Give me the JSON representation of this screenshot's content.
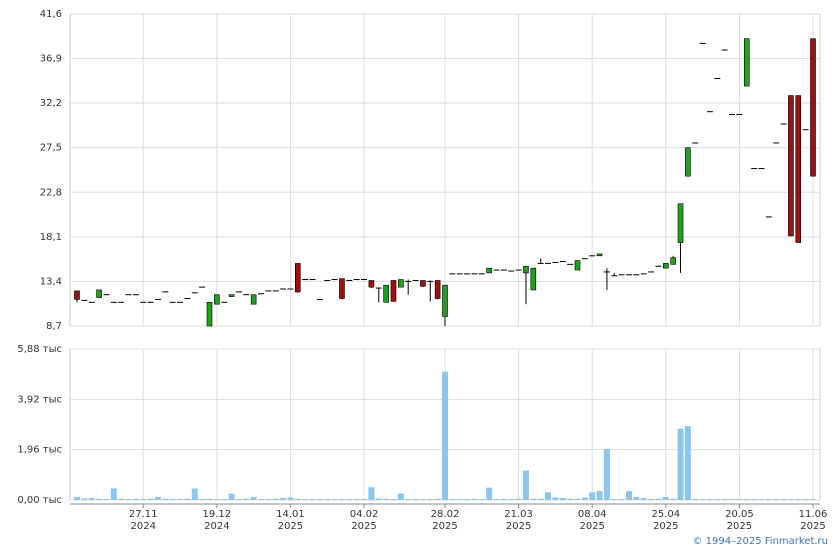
{
  "chart_data": {
    "type": "candlestick",
    "source": "© 1994–2025 Finmarket.ru",
    "categories": [
      null,
      null,
      null,
      null,
      null,
      null,
      null,
      null,
      null,
      "27.11",
      null,
      null,
      null,
      null,
      null,
      null,
      null,
      null,
      null,
      "19.12",
      null,
      null,
      null,
      null,
      null,
      null,
      null,
      null,
      null,
      "14.01",
      null,
      null,
      null,
      null,
      null,
      null,
      null,
      null,
      null,
      "04.02",
      null,
      null,
      null,
      null,
      null,
      null,
      null,
      null,
      null,
      null,
      "28.02",
      null,
      null,
      null,
      null,
      null,
      null,
      null,
      null,
      null,
      "21.03",
      null,
      null,
      null,
      null,
      null,
      null,
      null,
      null,
      null,
      "08.04",
      null,
      null,
      null,
      null,
      null,
      null,
      null,
      null,
      null,
      "25.04",
      null,
      null,
      null,
      null,
      null,
      null,
      null,
      null,
      null,
      "20.05",
      null,
      null,
      null,
      null,
      null,
      null,
      null,
      null,
      null,
      "11.06"
    ],
    "category_years": [
      null,
      null,
      null,
      null,
      null,
      null,
      null,
      null,
      null,
      "2024",
      null,
      null,
      null,
      null,
      null,
      null,
      null,
      null,
      null,
      "2024",
      null,
      null,
      null,
      null,
      null,
      null,
      null,
      null,
      null,
      "2025",
      null,
      null,
      null,
      null,
      null,
      null,
      null,
      null,
      null,
      "2025",
      null,
      null,
      null,
      null,
      null,
      null,
      null,
      null,
      null,
      null,
      "2025",
      null,
      null,
      null,
      null,
      null,
      null,
      null,
      null,
      null,
      "2025",
      null,
      null,
      null,
      null,
      null,
      null,
      null,
      null,
      null,
      "2025",
      null,
      null,
      null,
      null,
      null,
      null,
      null,
      null,
      null,
      "2025",
      null,
      null,
      null,
      null,
      null,
      null,
      null,
      null,
      null,
      "2025",
      null,
      null,
      null,
      null,
      null,
      null,
      null,
      null,
      null,
      "2025"
    ],
    "ohlc": [
      [
        12.4,
        12.4,
        11.2,
        11.5
      ],
      [
        11.4,
        11.4,
        11.4,
        11.4
      ],
      [
        11.2,
        11.2,
        11.2,
        11.2
      ],
      [
        11.7,
        12.5,
        11.7,
        12.5
      ],
      [
        12.0,
        12.0,
        12.0,
        12.0
      ],
      [
        11.2,
        11.2,
        11.2,
        11.2
      ],
      [
        11.2,
        11.2,
        11.2,
        11.2
      ],
      [
        12.0,
        12.0,
        12.0,
        12.0
      ],
      [
        12.0,
        12.0,
        12.0,
        12.0
      ],
      [
        11.2,
        11.2,
        11.2,
        11.2
      ],
      [
        11.2,
        11.2,
        11.2,
        11.2
      ],
      [
        11.5,
        11.5,
        11.5,
        11.5
      ],
      [
        12.3,
        12.3,
        12.3,
        12.3
      ],
      [
        11.2,
        11.2,
        11.2,
        11.2
      ],
      [
        11.2,
        11.2,
        11.2,
        11.2
      ],
      [
        11.6,
        11.6,
        11.6,
        11.6
      ],
      [
        12.2,
        12.2,
        12.2,
        12.2
      ],
      [
        12.8,
        12.8,
        12.8,
        12.8
      ],
      [
        8.7,
        11.2,
        8.7,
        11.2
      ],
      [
        11.0,
        12.0,
        11.0,
        12.0
      ],
      [
        11.2,
        11.2,
        11.2,
        11.2
      ],
      [
        11.8,
        12.0,
        11.8,
        12.0
      ],
      [
        12.3,
        12.3,
        12.3,
        12.3
      ],
      [
        12.0,
        12.0,
        12.0,
        12.0
      ],
      [
        11.0,
        12.0,
        11.0,
        12.0
      ],
      [
        12.1,
        12.1,
        12.1,
        12.1
      ],
      [
        12.4,
        12.4,
        12.4,
        12.4
      ],
      [
        12.4,
        12.4,
        12.4,
        12.4
      ],
      [
        12.6,
        12.6,
        12.6,
        12.6
      ],
      [
        12.6,
        12.6,
        12.6,
        12.6
      ],
      [
        15.3,
        15.3,
        12.2,
        12.3
      ],
      [
        13.6,
        13.6,
        13.6,
        13.6
      ],
      [
        13.6,
        13.6,
        13.6,
        13.6
      ],
      [
        11.5,
        11.5,
        11.5,
        11.5
      ],
      [
        13.5,
        13.5,
        13.5,
        13.5
      ],
      [
        13.6,
        13.6,
        13.6,
        13.6
      ],
      [
        13.7,
        13.7,
        11.5,
        11.6
      ],
      [
        13.5,
        13.5,
        13.5,
        13.5
      ],
      [
        13.6,
        13.6,
        13.6,
        13.6
      ],
      [
        13.6,
        13.6,
        13.6,
        13.6
      ],
      [
        13.5,
        13.5,
        12.7,
        12.8
      ],
      [
        12.7,
        12.7,
        11.2,
        12.7
      ],
      [
        11.2,
        13.0,
        11.2,
        13.0
      ],
      [
        13.5,
        13.5,
        11.3,
        11.3
      ],
      [
        12.8,
        13.6,
        12.8,
        13.6
      ],
      [
        13.4,
        13.6,
        12.0,
        13.4
      ],
      [
        13.5,
        13.5,
        13.5,
        13.5
      ],
      [
        13.5,
        13.5,
        12.8,
        12.9
      ],
      [
        13.4,
        13.5,
        11.3,
        13.4
      ],
      [
        13.5,
        13.5,
        11.5,
        11.6
      ],
      [
        9.7,
        13.0,
        8.7,
        13.0
      ],
      [
        14.2,
        14.2,
        14.2,
        14.2
      ],
      [
        14.2,
        14.2,
        14.2,
        14.2
      ],
      [
        14.2,
        14.2,
        14.2,
        14.2
      ],
      [
        14.2,
        14.2,
        14.2,
        14.2
      ],
      [
        14.2,
        14.2,
        14.2,
        14.2
      ],
      [
        14.3,
        14.8,
        14.3,
        14.8
      ],
      [
        14.6,
        14.6,
        14.6,
        14.6
      ],
      [
        14.6,
        14.6,
        14.6,
        14.6
      ],
      [
        14.5,
        14.5,
        14.5,
        14.5
      ],
      [
        14.6,
        14.6,
        14.6,
        14.6
      ],
      [
        14.3,
        15.0,
        11.0,
        15.0
      ],
      [
        12.5,
        14.8,
        12.5,
        14.8
      ],
      [
        15.3,
        15.8,
        15.3,
        15.3
      ],
      [
        15.3,
        15.3,
        15.3,
        15.3
      ],
      [
        15.4,
        15.4,
        15.4,
        15.4
      ],
      [
        15.5,
        15.5,
        15.5,
        15.5
      ],
      [
        15.2,
        15.2,
        15.2,
        15.2
      ],
      [
        14.6,
        15.6,
        14.6,
        15.6
      ],
      [
        15.8,
        15.8,
        15.8,
        15.8
      ],
      [
        16.1,
        16.1,
        16.1,
        16.1
      ],
      [
        16.1,
        16.3,
        16.1,
        16.3
      ],
      [
        14.4,
        14.8,
        12.5,
        14.4
      ],
      [
        14.0,
        14.3,
        14.0,
        14.0
      ],
      [
        14.1,
        14.1,
        14.1,
        14.1
      ],
      [
        14.1,
        14.1,
        14.1,
        14.1
      ],
      [
        14.1,
        14.1,
        14.1,
        14.1
      ],
      [
        14.2,
        14.2,
        14.2,
        14.2
      ],
      [
        14.4,
        14.4,
        14.4,
        14.4
      ],
      [
        15.0,
        15.0,
        15.0,
        15.0
      ],
      [
        14.8,
        15.3,
        14.8,
        15.3
      ],
      [
        15.2,
        16.1,
        15.2,
        15.9
      ],
      [
        17.5,
        21.6,
        14.3,
        21.6
      ],
      [
        24.5,
        27.5,
        24.5,
        27.5
      ],
      [
        28.0,
        28.0,
        28.0,
        28.0
      ],
      [
        38.5,
        38.5,
        38.5,
        38.5
      ],
      [
        31.3,
        31.3,
        31.3,
        31.3
      ],
      [
        34.8,
        34.8,
        34.8,
        34.8
      ],
      [
        37.8,
        37.8,
        37.8,
        37.8
      ],
      [
        31.0,
        31.0,
        31.0,
        31.0
      ],
      [
        31.0,
        31.0,
        31.0,
        31.0
      ],
      [
        34.0,
        39.0,
        34.0,
        39.0
      ],
      [
        25.3,
        25.3,
        25.3,
        25.3
      ],
      [
        25.3,
        25.3,
        25.3,
        25.3
      ],
      [
        20.2,
        20.2,
        20.2,
        20.2
      ],
      [
        28.0,
        28.0,
        28.0,
        28.0
      ],
      [
        30.0,
        30.0,
        30.0,
        30.0
      ],
      [
        33.0,
        33.0,
        18.2,
        18.2
      ],
      [
        33.0,
        33.0,
        17.5,
        17.5
      ],
      [
        29.4,
        29.4,
        29.4,
        29.4
      ],
      [
        39.0,
        39.0,
        24.5,
        24.5
      ]
    ],
    "volume": [
      0.12,
      0.06,
      0.08,
      0.05,
      0.04,
      0.45,
      0.05,
      0.04,
      0.05,
      0.04,
      0.05,
      0.12,
      0.05,
      0.04,
      0.04,
      0.05,
      0.45,
      0.04,
      0.05,
      0.04,
      0.04,
      0.25,
      0.04,
      0.05,
      0.12,
      0.04,
      0.04,
      0.05,
      0.08,
      0.1,
      0.05,
      0.04,
      0.04,
      0.04,
      0.04,
      0.04,
      0.04,
      0.04,
      0.04,
      0.04,
      0.5,
      0.06,
      0.05,
      0.04,
      0.25,
      0.04,
      0.04,
      0.04,
      0.04,
      0.05,
      5.0,
      0.04,
      0.04,
      0.04,
      0.05,
      0.04,
      0.48,
      0.04,
      0.05,
      0.04,
      0.05,
      1.15,
      0.05,
      0.05,
      0.3,
      0.1,
      0.08,
      0.05,
      0.05,
      0.1,
      0.3,
      0.35,
      1.98,
      0.04,
      0.04,
      0.35,
      0.12,
      0.08,
      0.04,
      0.05,
      0.12,
      0.05,
      2.78,
      2.88,
      0.04,
      0.04,
      0.04,
      0.04,
      0.04,
      0.04,
      0.04,
      0.04,
      0.04,
      0.04,
      0.04,
      0.04,
      0.04,
      0.04,
      0.04,
      0.04,
      0.04
    ],
    "up_color": "#22a022",
    "down_color": "#a01010",
    "flat_color": "#000000",
    "volume_color": "#8cc6ee",
    "ylim": [
      8.7,
      41.6
    ],
    "yticks": [
      {
        "value": 8.7,
        "label": "8,7"
      },
      {
        "value": 13.4,
        "label": "13,4"
      },
      {
        "value": 18.1,
        "label": "18,1"
      },
      {
        "value": 22.8,
        "label": "22,8"
      },
      {
        "value": 27.5,
        "label": "27,5"
      },
      {
        "value": 32.2,
        "label": "32,2"
      },
      {
        "value": 36.9,
        "label": "36,9"
      },
      {
        "value": 41.6,
        "label": "41,6"
      }
    ],
    "y2lim": [
      0,
      5.88
    ],
    "y2ticks": [
      {
        "value": 0,
        "label": "0,00 тыс"
      },
      {
        "value": 1.96,
        "label": "1,96 тыс"
      },
      {
        "value": 3.92,
        "label": "3,92 тыс"
      },
      {
        "value": 5.88,
        "label": "5,88 тыс"
      }
    ],
    "grid": true
  }
}
